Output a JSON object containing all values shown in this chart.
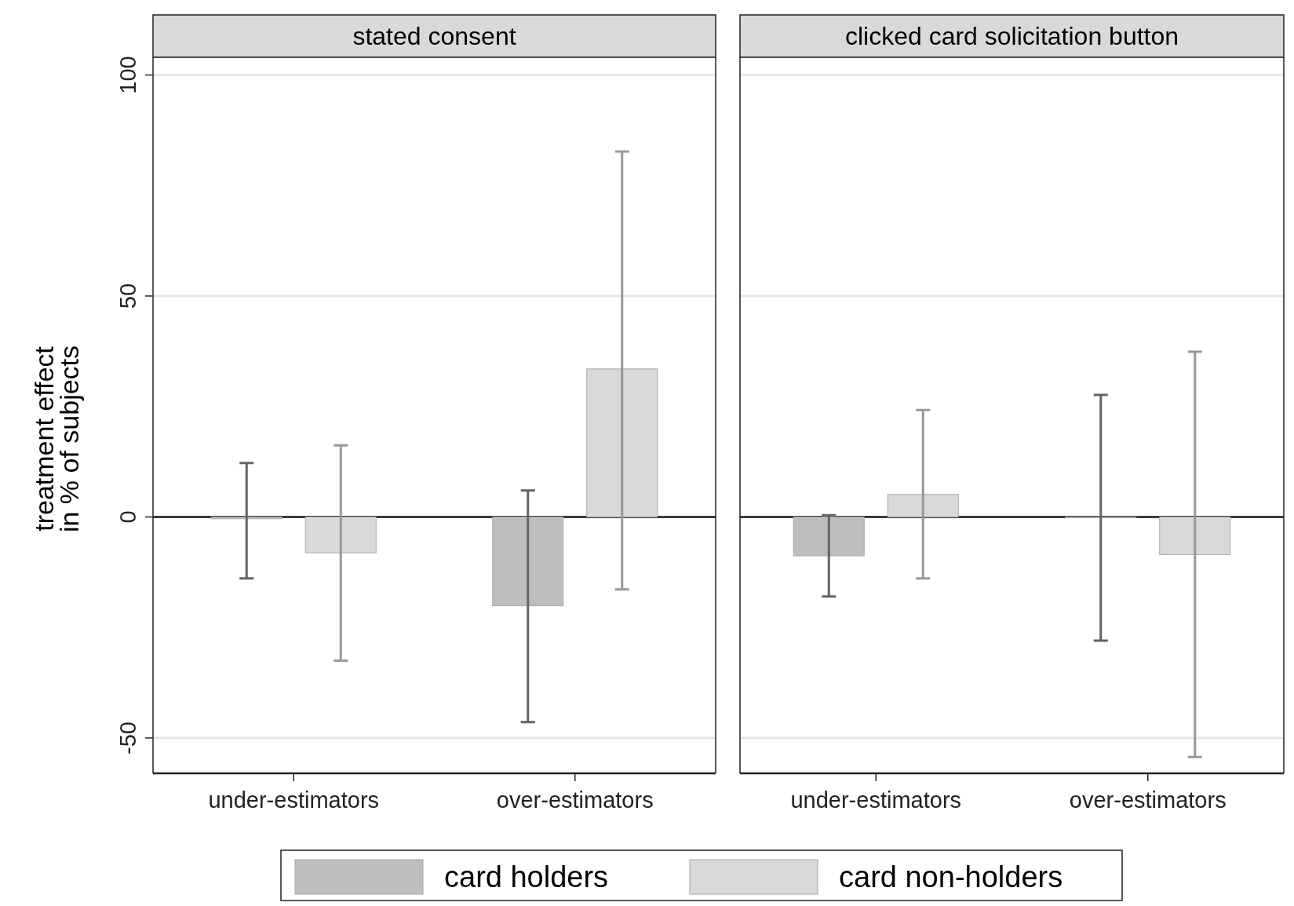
{
  "chart_data": [
    {
      "type": "bar",
      "title": "stated consent",
      "ylabel": "treatment effect\nin % of subjects",
      "categories": [
        "under-estimators",
        "over-estimators"
      ],
      "series": [
        {
          "name": "card holders",
          "color": "#bebebe",
          "values": [
            -0.4,
            -20.1
          ],
          "errors": [
            [
              -13.9,
              12.2
            ],
            [
              -46.4,
              6.0
            ]
          ]
        },
        {
          "name": "card non-holders",
          "color": "#d9d9d9",
          "values": [
            -8.1,
            33.5
          ],
          "errors": [
            [
              -32.5,
              16.2
            ],
            [
              -16.4,
              82.7
            ]
          ]
        }
      ],
      "ylim": [
        -58,
        104
      ],
      "yticks": [
        -50,
        0,
        50,
        100
      ],
      "grid": "y",
      "ref_lines": [
        {
          "axis": "y",
          "value": 0,
          "color": "#3c3c3c"
        }
      ],
      "legend": "bottom"
    },
    {
      "type": "bar",
      "title": "clicked card solicitation button",
      "categories": [
        "under-estimators",
        "over-estimators"
      ],
      "series": [
        {
          "color": "#bebebe",
          "values": [
            -8.8,
            -0.2
          ],
          "errors": [
            [
              -18.0,
              0.4
            ],
            [
              -28.0,
              27.6
            ]
          ]
        },
        {
          "color": "#d9d9d9",
          "values": [
            5.1,
            -8.5
          ],
          "errors": [
            [
              -13.9,
              24.2
            ],
            [
              -54.3,
              37.4
            ]
          ]
        }
      ],
      "ylim": [
        -58,
        104
      ],
      "yticks": [
        -50,
        0,
        50,
        100
      ],
      "grid": "y",
      "ref_lines": [
        {
          "axis": "y",
          "value": 0,
          "color": "#3c3c3c"
        }
      ],
      "tick_labels": "x"
    }
  ]
}
